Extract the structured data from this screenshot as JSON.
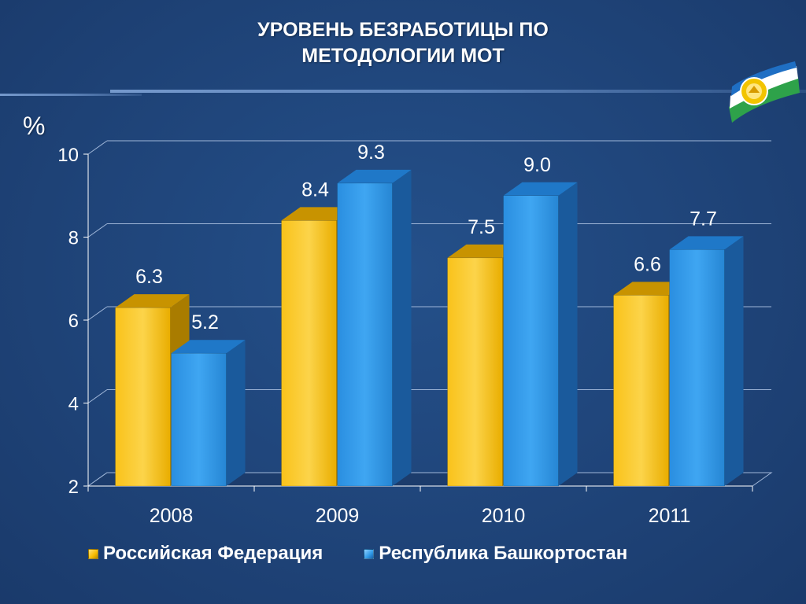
{
  "page": {
    "title_lines": [
      "УРОВЕНЬ БЕЗРАБОТИЦЫ ПО",
      "МЕТОДОЛОГИИ МОТ"
    ],
    "y_unit": "%"
  },
  "colors": {
    "background": "#1f4479",
    "series_ru": "#f6bb00",
    "series_ba": "#2f9ae8",
    "text": "#ffffff"
  },
  "legend": {
    "items": [
      {
        "label": "Российская Федерация",
        "color": "#f6bb00"
      },
      {
        "label": "Республика Башкортостан",
        "color": "#2f9ae8"
      }
    ]
  },
  "chart_data": {
    "type": "bar",
    "title": "УРОВЕНЬ БЕЗРАБОТИЦЫ ПО МЕТОДОЛОГИИ МОТ",
    "xlabel": "",
    "ylabel": "%",
    "categories": [
      "2008",
      "2009",
      "2010",
      "2011"
    ],
    "series": [
      {
        "name": "Российская Федерация",
        "values": [
          6.3,
          8.4,
          7.5,
          6.6
        ],
        "labels": [
          "6.3",
          "8.4",
          "7.5",
          "6.6"
        ]
      },
      {
        "name": "Республика Башкортостан",
        "values": [
          5.2,
          9.3,
          9.0,
          7.7
        ],
        "labels": [
          "5.2",
          "9.3",
          "9.0",
          "7.7"
        ]
      }
    ],
    "ylim": [
      2,
      10
    ],
    "yticks": [
      2,
      4,
      6,
      8,
      10
    ],
    "ytick_labels": [
      "2",
      "4",
      "6",
      "8",
      "10"
    ],
    "grid": true,
    "legend_position": "bottom",
    "style": "3d-columns"
  }
}
